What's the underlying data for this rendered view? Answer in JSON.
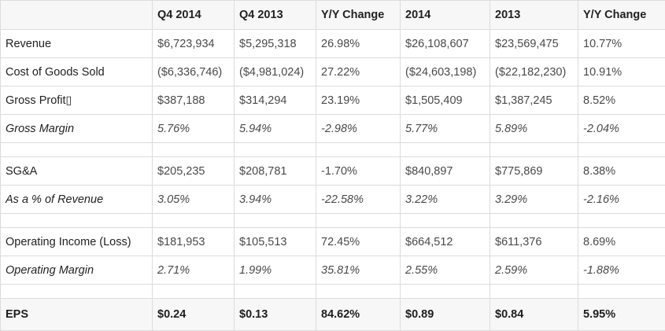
{
  "table": {
    "headers": [
      "",
      "Q4 2014",
      "Q4 2013",
      "Y/Y Change",
      "2014",
      "2013",
      "Y/Y Change"
    ],
    "rows": [
      {
        "label": "Revenue",
        "values": [
          "$6,723,934",
          "$5,295,318",
          "26.98%",
          "$26,108,607",
          "$23,569,475",
          "10.77%"
        ]
      },
      {
        "label": "Cost of Goods Sold",
        "values": [
          "($6,336,746)",
          "($4,981,024)",
          "27.22%",
          "($24,603,198)",
          "($22,182,230)",
          "10.91%"
        ]
      },
      {
        "label": "Gross Profit▯",
        "values": [
          "$387,188",
          "$314,294",
          "23.19%",
          "$1,505,409",
          "$1,387,245",
          "8.52%"
        ]
      },
      {
        "label": "Gross Margin",
        "values": [
          "5.76%",
          "5.94%",
          "-2.98%",
          "5.77%",
          "5.89%",
          "-2.04%"
        ]
      },
      {
        "label": "SG&A",
        "values": [
          "$205,235",
          "$208,781",
          "-1.70%",
          "$840,897",
          "$775,869",
          "8.38%"
        ]
      },
      {
        "label": "As a % of Revenue",
        "values": [
          "3.05%",
          "3.94%",
          "-22.58%",
          "3.22%",
          "3.29%",
          "-2.16%"
        ]
      },
      {
        "label": "Operating Income (Loss)",
        "values": [
          "$181,953",
          "$105,513",
          "72.45%",
          "$664,512",
          "$611,376",
          "8.69%"
        ]
      },
      {
        "label": "Operating Margin",
        "values": [
          "2.71%",
          "1.99%",
          "35.81%",
          "2.55%",
          "2.59%",
          "-1.88%"
        ]
      },
      {
        "label": "EPS",
        "values": [
          "$0.24",
          "$0.13",
          "84.62%",
          "$0.89",
          "$0.84",
          "5.95%"
        ]
      }
    ]
  }
}
